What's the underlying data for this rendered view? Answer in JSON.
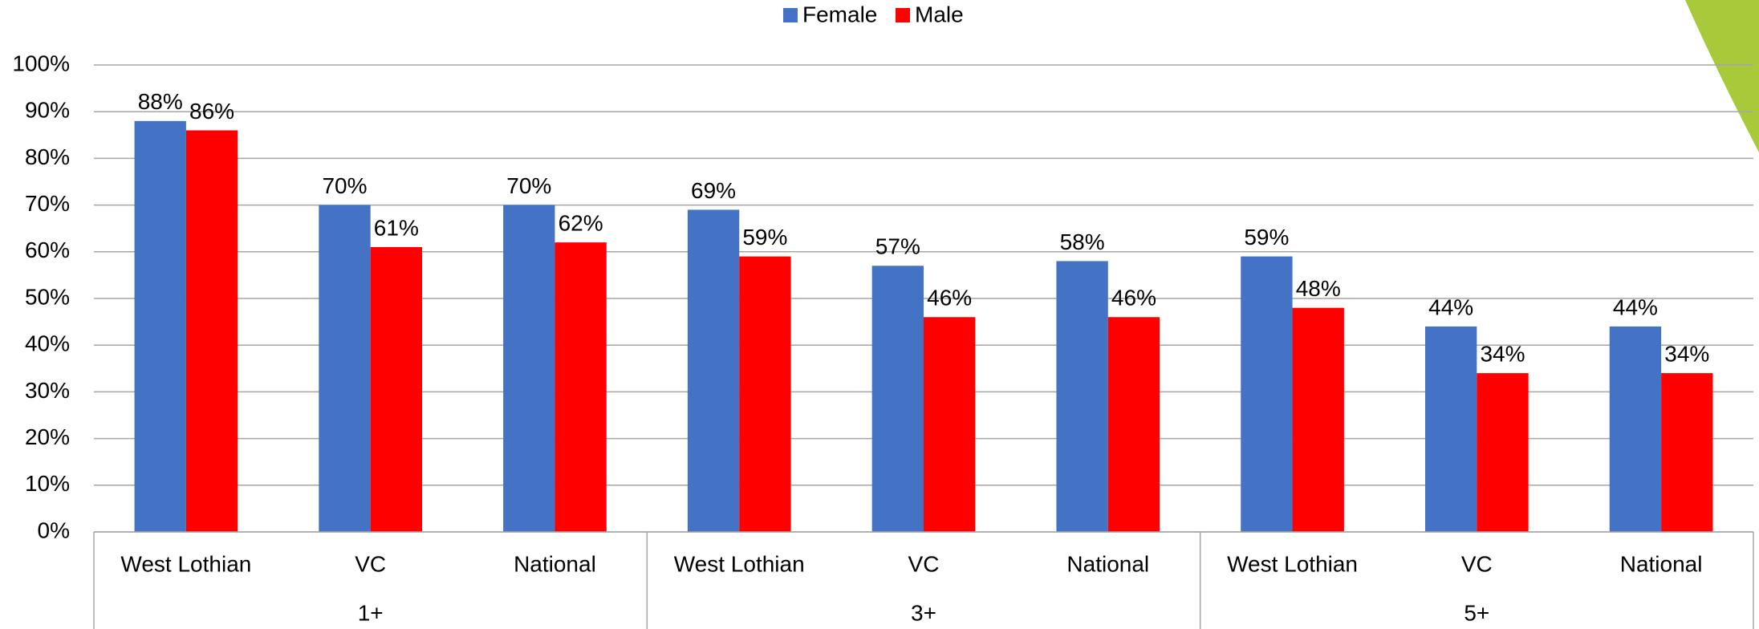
{
  "chart_data": {
    "type": "bar",
    "categories": [
      "West Lothian",
      "VC",
      "National",
      "West Lothian",
      "VC",
      "National",
      "West Lothian",
      "VC",
      "National"
    ],
    "groups": [
      "1+",
      "3+",
      "5+"
    ],
    "series": [
      {
        "name": "Female",
        "color": "#4472c4",
        "values": [
          88,
          70,
          70,
          69,
          57,
          58,
          59,
          44,
          44
        ],
        "value_labels": [
          "88%",
          "70%",
          "70%",
          "69%",
          "57%",
          "58%",
          "59%",
          "44%",
          "44%"
        ]
      },
      {
        "name": "Male",
        "color": "#ff0000",
        "values": [
          86,
          61,
          62,
          59,
          46,
          46,
          48,
          34,
          34
        ],
        "value_labels": [
          "86%",
          "61%",
          "62%",
          "59%",
          "46%",
          "46%",
          "48%",
          "34%",
          "34%"
        ]
      }
    ],
    "ylim": [
      0,
      100
    ],
    "yticks": [
      {
        "value": 0,
        "label": "0%"
      },
      {
        "value": 10,
        "label": "10%"
      },
      {
        "value": 20,
        "label": "20%"
      },
      {
        "value": 30,
        "label": "30%"
      },
      {
        "value": 40,
        "label": "40%"
      },
      {
        "value": 50,
        "label": "50%"
      },
      {
        "value": 60,
        "label": "60%"
      },
      {
        "value": 70,
        "label": "70%"
      },
      {
        "value": 80,
        "label": "80%"
      },
      {
        "value": 90,
        "label": "90%"
      },
      {
        "value": 100,
        "label": "100%"
      }
    ],
    "grid": true,
    "legend": "top"
  }
}
